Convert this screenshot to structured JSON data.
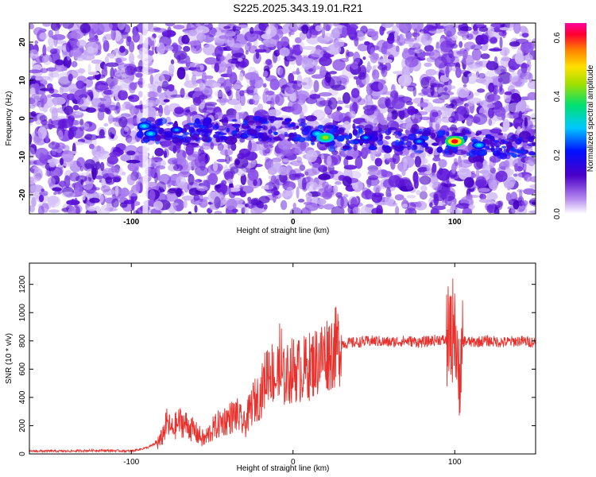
{
  "title": "S225.2025.343.19.01.R21",
  "chart_data": [
    {
      "type": "heatmap",
      "xlabel": "Height of straight line (km)",
      "ylabel": "Frequency (Hz)",
      "xlim": [
        -163,
        150
      ],
      "ylim": [
        -25,
        25
      ],
      "x_ticks": [
        -100,
        0,
        100
      ],
      "y_ticks": [
        -20,
        -10,
        0,
        10,
        20
      ],
      "colorbar": {
        "label": "Normalized spectral amplitude",
        "range": [
          0.0,
          0.65
        ],
        "ticks": [
          "0.0",
          "0.2",
          "0.4",
          "0.6"
        ]
      },
      "signal_track": [
        [
          -95,
          -3
        ],
        [
          -60,
          -3.5
        ],
        [
          -20,
          -3
        ],
        [
          0,
          -3
        ],
        [
          20,
          -5
        ],
        [
          50,
          -5
        ],
        [
          80,
          -6
        ],
        [
          100,
          -6
        ],
        [
          120,
          -7
        ],
        [
          150,
          -7
        ]
      ],
      "peaks": [
        {
          "x": -92,
          "y": -2,
          "amp": 0.25
        },
        {
          "x": -88,
          "y": -4,
          "amp": 0.22
        },
        {
          "x": -72,
          "y": -3,
          "amp": 0.15
        },
        {
          "x": 15,
          "y": -4,
          "amp": 0.28
        },
        {
          "x": 20,
          "y": -5,
          "amp": 0.5
        },
        {
          "x": 45,
          "y": -5,
          "amp": 0.12
        },
        {
          "x": 78,
          "y": -6,
          "amp": 0.14
        },
        {
          "x": 100,
          "y": -6,
          "amp": 0.62
        },
        {
          "x": 115,
          "y": -7,
          "amp": 0.22
        }
      ]
    },
    {
      "type": "line",
      "xlabel": "Height of straight line (km)",
      "ylabel": "SNR (10 * v/v)",
      "xlim": [
        -163,
        150
      ],
      "ylim": [
        0,
        1350
      ],
      "x_ticks": [
        -100,
        0,
        100
      ],
      "y_ticks": [
        0,
        200,
        400,
        600,
        800,
        1000,
        1200
      ],
      "series": [
        {
          "name": "SNR",
          "color": "#e8312c",
          "x": [
            -163,
            -140,
            -120,
            -100,
            -90,
            -82,
            -78,
            -75,
            -70,
            -65,
            -60,
            -55,
            -50,
            -45,
            -40,
            -35,
            -30,
            -25,
            -20,
            -15,
            -10,
            -5,
            0,
            5,
            10,
            15,
            20,
            25,
            30,
            40,
            50,
            60,
            70,
            80,
            90,
            95,
            98,
            100,
            102,
            104,
            106,
            110,
            120,
            130,
            140,
            150
          ],
          "y": [
            20,
            20,
            25,
            20,
            45,
            90,
            220,
            170,
            230,
            200,
            150,
            100,
            170,
            220,
            250,
            280,
            200,
            360,
            420,
            620,
            520,
            540,
            600,
            590,
            620,
            660,
            710,
            740,
            780,
            790,
            800,
            790,
            800,
            790,
            810,
            800,
            820,
            1000,
            450,
            780,
            800,
            790,
            800,
            790,
            800,
            790
          ]
        }
      ]
    }
  ]
}
